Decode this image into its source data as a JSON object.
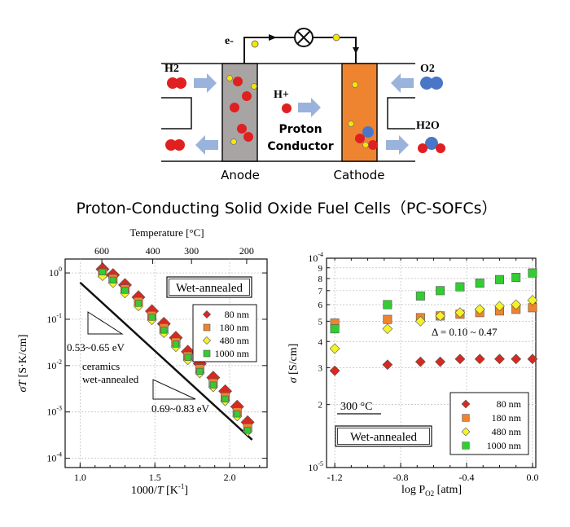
{
  "diagram": {
    "electron_label": "e-",
    "h2_label": "H2",
    "o2_label": "O2",
    "hplus_label": "H+",
    "proton_line1": "Proton",
    "proton_line2": "Conductor",
    "h2o_label": "H2O",
    "anode_label": "Anode",
    "cathode_label": "Cathode",
    "colors": {
      "anode": "#a8a4a4",
      "cathode": "#ee8430",
      "red_atom": "#e02020",
      "blue_atom": "#4a76c8",
      "arrow": "#9ab3dc",
      "electron": "#f7e600"
    }
  },
  "main_title": "Proton-Conducting Solid Oxide Fuel Cells（PC-SOFCs）",
  "chart_data": [
    {
      "type": "scatter",
      "xlabel_prefix": "1000/",
      "xlabel_var": "T",
      "xlabel_unit": " [K",
      "xlabel_exp": "-1",
      "xlabel_close": "]",
      "ylabel_var": "σT",
      "ylabel_unit": " [S·K/cm]",
      "top_axis_label": "Temperature [°C]",
      "top_ticks": [
        "600",
        "400",
        "300",
        "200"
      ],
      "top_tick_celsius": [
        600,
        400,
        300,
        200
      ],
      "x_ticks": [
        "1.0",
        "1.5",
        "2.0"
      ],
      "y_ticks": [
        {
          "base": "10",
          "exp": "0"
        },
        {
          "base": "10",
          "exp": "-1"
        },
        {
          "base": "10",
          "exp": "-2"
        },
        {
          "base": "10",
          "exp": "-3"
        },
        {
          "base": "10",
          "exp": "-4"
        }
      ],
      "xlim": [
        0.9,
        2.25
      ],
      "ylim_log10": [
        -4.2,
        0.3
      ],
      "y_scale": "log",
      "grid": true,
      "legend": "top-right",
      "box_label": "Wet-annealed",
      "ceramics_label_1": "ceramics",
      "ceramics_label_2": "wet-annealed",
      "slope_label_1": "0.53~0.65 eV",
      "slope_label_2": "0.69~0.83 eV",
      "series": [
        {
          "name": "80 nm",
          "marker": "diamond",
          "color": "#d62a20",
          "x": [
            1.15,
            1.22,
            1.3,
            1.39,
            1.48,
            1.56,
            1.64,
            1.72,
            1.8,
            1.89,
            1.97,
            2.05,
            2.12
          ],
          "y": [
            1.2,
            0.9,
            0.55,
            0.3,
            0.15,
            0.08,
            0.04,
            0.02,
            0.011,
            0.0055,
            0.0028,
            0.0013,
            0.0006
          ]
        },
        {
          "name": "180 nm",
          "marker": "square",
          "color": "#ee8430",
          "x": [
            1.15,
            1.22,
            1.3,
            1.39,
            1.48,
            1.56,
            1.64,
            1.72,
            1.8,
            1.89,
            1.97,
            2.05,
            2.12
          ],
          "y": [
            1.0,
            0.75,
            0.45,
            0.24,
            0.12,
            0.065,
            0.032,
            0.016,
            0.0085,
            0.0042,
            0.0021,
            0.001,
            0.00045
          ]
        },
        {
          "name": "480 nm",
          "marker": "diamond",
          "color": "#f3f32a",
          "x": [
            1.15,
            1.22,
            1.3,
            1.39,
            1.48,
            1.56,
            1.64,
            1.72,
            1.8,
            1.89,
            1.97,
            2.05,
            2.12
          ],
          "y": [
            0.85,
            0.6,
            0.36,
            0.19,
            0.095,
            0.05,
            0.025,
            0.013,
            0.0068,
            0.0034,
            0.0017,
            0.0008,
            0.00038
          ]
        },
        {
          "name": "1000 nm",
          "marker": "square",
          "color": "#33cc33",
          "x": [
            1.15,
            1.22,
            1.3,
            1.39,
            1.48,
            1.56,
            1.64,
            1.72,
            1.8,
            1.89,
            1.97,
            2.05,
            2.12
          ],
          "y": [
            1.05,
            0.7,
            0.42,
            0.22,
            0.11,
            0.058,
            0.029,
            0.015,
            0.0075,
            0.0038,
            0.0019,
            0.0009,
            0.0004
          ]
        }
      ],
      "ceramics_line": {
        "x": [
          1.0,
          2.15
        ],
        "y": [
          0.62,
          0.00025
        ]
      }
    },
    {
      "type": "scatter",
      "xlabel_prefix": "log P",
      "xlabel_sub": "O2",
      "xlabel_unit": " [atm]",
      "ylabel_var": "σ",
      "ylabel_unit": " [S/cm]",
      "x_ticks": [
        "-1.2",
        "-0.8",
        "-0.4",
        "0.0"
      ],
      "x_tick_values": [
        -1.2,
        -0.8,
        -0.4,
        0.0
      ],
      "y_ticks": [
        {
          "base": "10",
          "exp": "-4"
        },
        {
          "base": "10",
          "exp": "-5"
        }
      ],
      "y_minor_labels": [
        "9",
        "8",
        "7",
        "6",
        "5",
        "4",
        "3",
        "2"
      ],
      "y_minor_values": [
        9,
        8,
        7,
        6,
        5,
        4,
        3,
        2
      ],
      "xlim": [
        -1.25,
        0.02
      ],
      "ylim_log10": [
        -5,
        -4
      ],
      "y_scale": "log",
      "grid": true,
      "legend": "bottom-right",
      "temp_label": "300 °C",
      "box_label": "Wet-annealed",
      "delta_label": "Δ = 0.10 ~ 0.47",
      "series": [
        {
          "name": "80 nm",
          "marker": "diamond",
          "color": "#d62a20",
          "x": [
            -1.2,
            -0.88,
            -0.68,
            -0.56,
            -0.44,
            -0.32,
            -0.2,
            -0.1,
            0.0
          ],
          "y": [
            2.9e-05,
            3.1e-05,
            3.2e-05,
            3.2e-05,
            3.3e-05,
            3.3e-05,
            3.3e-05,
            3.3e-05,
            3.3e-05
          ]
        },
        {
          "name": "180 nm",
          "marker": "square",
          "color": "#ee8430",
          "x": [
            -1.2,
            -0.88,
            -0.68,
            -0.56,
            -0.44,
            -0.32,
            -0.2,
            -0.1,
            0.0
          ],
          "y": [
            4.9e-05,
            5.1e-05,
            5.2e-05,
            5.3e-05,
            5.4e-05,
            5.5e-05,
            5.6e-05,
            5.7e-05,
            5.8e-05
          ]
        },
        {
          "name": "480 nm",
          "marker": "diamond",
          "color": "#f3f32a",
          "x": [
            -1.2,
            -0.88,
            -0.68,
            -0.56,
            -0.44,
            -0.32,
            -0.2,
            -0.1,
            0.0
          ],
          "y": [
            3.7e-05,
            4.6e-05,
            5e-05,
            5.3e-05,
            5.5e-05,
            5.7e-05,
            5.9e-05,
            6e-05,
            6.3e-05
          ]
        },
        {
          "name": "1000 nm",
          "marker": "square",
          "color": "#33cc33",
          "x": [
            -1.2,
            -0.88,
            -0.68,
            -0.56,
            -0.44,
            -0.32,
            -0.2,
            -0.1,
            0.0
          ],
          "y": [
            4.6e-05,
            6e-05,
            6.6e-05,
            7e-05,
            7.3e-05,
            7.6e-05,
            7.9e-05,
            8.1e-05,
            8.5e-05
          ]
        }
      ]
    }
  ]
}
